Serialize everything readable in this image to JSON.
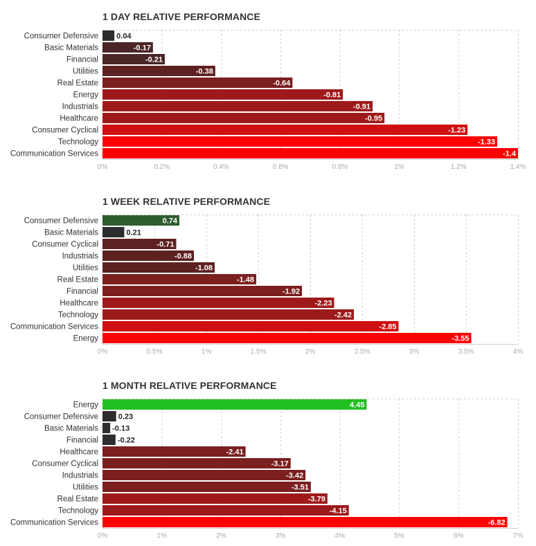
{
  "chart_data": [
    {
      "type": "bar",
      "orientation": "horizontal",
      "title": "1 DAY RELATIVE PERFORMANCE",
      "categories": [
        "Consumer Defensive",
        "Basic Materials",
        "Financial",
        "Utilities",
        "Real Estate",
        "Energy",
        "Industrials",
        "Healthcare",
        "Consumer Cyclical",
        "Technology",
        "Communication Services"
      ],
      "values": [
        0.04,
        -0.17,
        -0.21,
        -0.38,
        -0.64,
        -0.81,
        -0.91,
        -0.95,
        -1.23,
        -1.33,
        -1.4
      ],
      "value_labels": [
        "0.04",
        "-0.17",
        "-0.21",
        "-0.38",
        "-0.64",
        "-0.81",
        "-0.91",
        "-0.95",
        "-1.23",
        "-1.33",
        "-1.4"
      ],
      "xlim": [
        0,
        1.4
      ],
      "ticks": [
        0,
        0.2,
        0.4,
        0.6,
        0.8,
        1,
        1.2,
        1.4
      ],
      "tick_labels": [
        "0%",
        "0.2%",
        "0.4%",
        "0.6%",
        "0.8%",
        "1%",
        "1.2%",
        "1.4%"
      ],
      "grid": true
    },
    {
      "type": "bar",
      "orientation": "horizontal",
      "title": "1 WEEK RELATIVE PERFORMANCE",
      "categories": [
        "Consumer Defensive",
        "Basic Materials",
        "Consumer Cyclical",
        "Industrials",
        "Utilities",
        "Real Estate",
        "Financial",
        "Healthcare",
        "Technology",
        "Communication Services",
        "Energy"
      ],
      "values": [
        0.74,
        0.21,
        -0.71,
        -0.88,
        -1.08,
        -1.48,
        -1.92,
        -2.23,
        -2.42,
        -2.85,
        -3.55
      ],
      "value_labels": [
        "0.74",
        "0.21",
        "-0.71",
        "-0.88",
        "-1.08",
        "-1.48",
        "-1.92",
        "-2.23",
        "-2.42",
        "-2.85",
        "-3.55"
      ],
      "xlim": [
        0,
        4
      ],
      "ticks": [
        0,
        0.5,
        1,
        1.5,
        2,
        2.5,
        3,
        3.5,
        4
      ],
      "tick_labels": [
        "0%",
        "0.5%",
        "1%",
        "1.5%",
        "2%",
        "2.5%",
        "3%",
        "3.5%",
        "4%"
      ],
      "grid": true
    },
    {
      "type": "bar",
      "orientation": "horizontal",
      "title": "1 MONTH RELATIVE PERFORMANCE",
      "categories": [
        "Energy",
        "Consumer Defensive",
        "Basic Materials",
        "Financial",
        "Healthcare",
        "Consumer Cyclical",
        "Industrials",
        "Utilities",
        "Real Estate",
        "Technology",
        "Communication Services"
      ],
      "values": [
        4.45,
        0.23,
        -0.13,
        -0.22,
        -2.41,
        -3.17,
        -3.42,
        -3.51,
        -3.79,
        -4.15,
        -6.82
      ],
      "value_labels": [
        "4.45",
        "0.23",
        "-0.13",
        "-0.22",
        "-2.41",
        "-3.17",
        "-3.42",
        "-3.51",
        "-3.79",
        "-4.15",
        "-6.82"
      ],
      "xlim": [
        0,
        7
      ],
      "ticks": [
        0,
        1,
        2,
        3,
        4,
        5,
        6,
        7
      ],
      "tick_labels": [
        "0%",
        "1%",
        "2%",
        "3%",
        "4%",
        "5%",
        "6%",
        "7%"
      ],
      "grid": true
    }
  ]
}
